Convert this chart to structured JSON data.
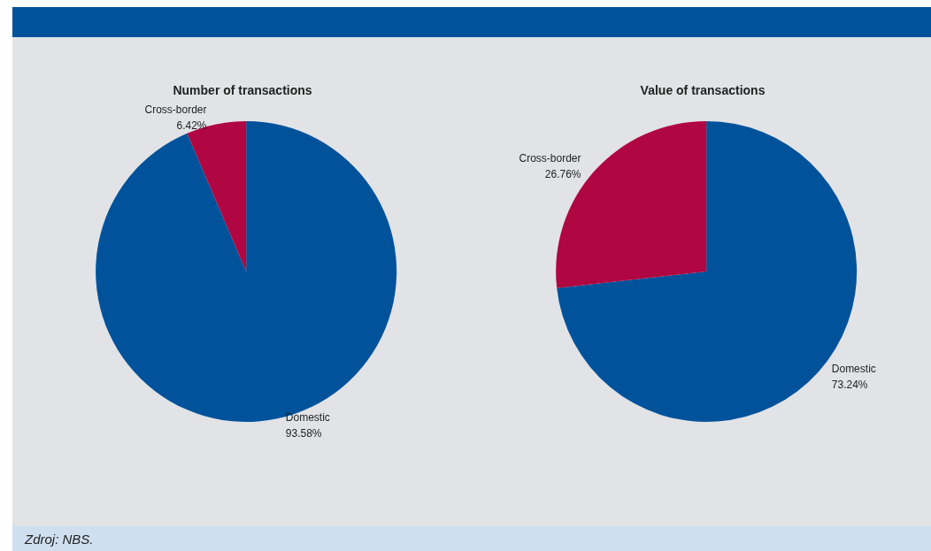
{
  "chart_data": [
    {
      "type": "pie",
      "title": "Number of transactions",
      "categories": [
        "Domestic",
        "Cross-border"
      ],
      "values": [
        93.58,
        6.42
      ],
      "value_labels": [
        "93.58%",
        "6.42%"
      ],
      "colors": [
        "#00529b",
        "#b00641"
      ],
      "annotations": [
        "Zdroj: NBS."
      ]
    },
    {
      "type": "pie",
      "title": "Value of transactions",
      "categories": [
        "Domestic",
        "Cross-border"
      ],
      "values": [
        73.24,
        26.76
      ],
      "value_labels": [
        "73.24%",
        "26.76%"
      ],
      "colors": [
        "#00529b",
        "#b00641"
      ]
    }
  ]
}
